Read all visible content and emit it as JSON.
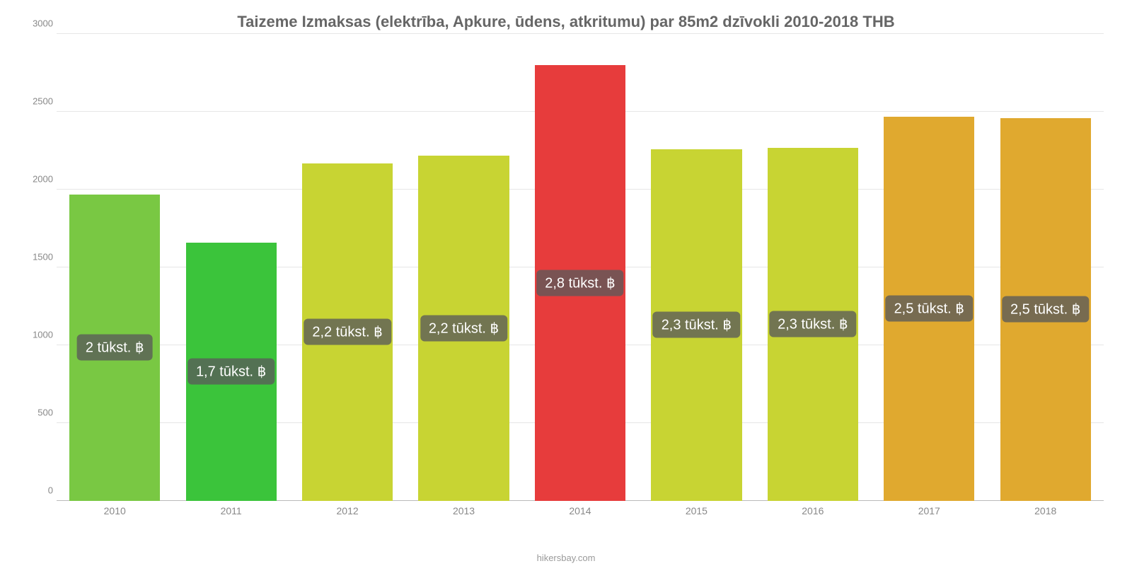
{
  "chart": {
    "type": "bar",
    "title": "Taizeme Izmaksas (elektrība, Apkure, ūdens, atkritumu) par 85m2 dzīvokli 2010-2018 THB",
    "title_fontsize": 22,
    "title_color": "#666666",
    "source": "hikersbay.com",
    "background_color": "#ffffff",
    "grid_color": "#e6e6e6",
    "axis_label_color": "#888888",
    "axis_fontsize": 13,
    "ylim": [
      0,
      3000
    ],
    "ytick_step": 500,
    "yticks": [
      "0",
      "500",
      "1000",
      "1500",
      "2000",
      "2500",
      "3000"
    ],
    "categories": [
      "2010",
      "2011",
      "2012",
      "2013",
      "2014",
      "2015",
      "2016",
      "2017",
      "2018"
    ],
    "values": [
      1970,
      1660,
      2170,
      2220,
      2800,
      2260,
      2270,
      2470,
      2460
    ],
    "value_labels": [
      "2 tūkst. ฿",
      "1,7 tūkst. ฿",
      "2,2 tūkst. ฿",
      "2,2 tūkst. ฿",
      "2,8 tūkst. ฿",
      "2,3 tūkst. ฿",
      "2,3 tūkst. ฿",
      "2,5 tūkst. ฿",
      "2,5 tūkst. ฿"
    ],
    "bar_colors": [
      "#79c843",
      "#3bc43b",
      "#c8d433",
      "#c8d433",
      "#e73c3c",
      "#c8d433",
      "#c8d433",
      "#e0a92f",
      "#e0a92f"
    ],
    "bar_width": 0.78,
    "badge_background": "rgba(90,90,90,0.78)",
    "badge_text_color": "#ffffff",
    "badge_fontsize": 20
  }
}
